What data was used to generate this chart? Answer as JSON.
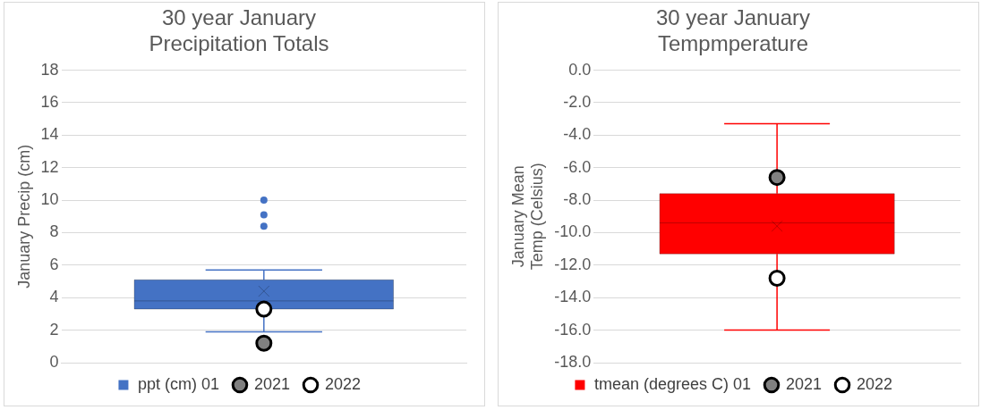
{
  "chart_data": [
    {
      "type": "box",
      "title": "30 year January Precipitation Totals",
      "ylabel": "January Precip (cm)",
      "categories": [
        null
      ],
      "ylim": [
        0,
        18
      ],
      "yticks": [
        0,
        2,
        4,
        6,
        8,
        10,
        12,
        14,
        16,
        18
      ],
      "grid": "y",
      "legend": "bottom",
      "tick_labels": "y",
      "series": [
        {
          "type": "box",
          "name": "ppt (cm) 01",
          "color": "#4472c4",
          "boxes": [
            {
              "low": 1.9,
              "q1": 3.3,
              "median": 3.8,
              "q3": 5.1,
              "high": 5.7,
              "mean": 4.4,
              "outliers": [
                8.4,
                9.1,
                10.0
              ]
            }
          ]
        },
        {
          "type": "scatter",
          "name": "2021",
          "color": "#808080",
          "marker": "circle",
          "values": [
            1.2
          ]
        },
        {
          "type": "scatter",
          "name": "2022",
          "color": "#ffffff",
          "marker": "circle",
          "values": [
            3.3
          ]
        }
      ]
    },
    {
      "type": "box",
      "title": "30 year January Tempmperature",
      "ylabel": "January Mean Temp (Celsius)",
      "categories": [
        null
      ],
      "ylim": [
        -18,
        0
      ],
      "yticks": [
        {
          "value": -18,
          "label": "-18.0"
        },
        {
          "value": -16,
          "label": "-16.0"
        },
        {
          "value": -14,
          "label": "-14.0"
        },
        {
          "value": -12,
          "label": "-12.0"
        },
        {
          "value": -10,
          "label": "-10.0"
        },
        {
          "value": -8,
          "label": "-8.0"
        },
        {
          "value": -6,
          "label": "-6.0"
        },
        {
          "value": -4,
          "label": "-4.0"
        },
        {
          "value": -2,
          "label": "-2.0"
        },
        {
          "value": 0,
          "label": "0.0"
        }
      ],
      "grid": "y",
      "legend": "bottom",
      "tick_labels": "y",
      "series": [
        {
          "type": "box",
          "name": "tmean (degrees C) 01",
          "color": "#ff0000",
          "boxes": [
            {
              "low": -16.0,
              "q1": -11.3,
              "median": -9.4,
              "q3": -7.6,
              "high": -3.3,
              "mean": -9.6
            }
          ]
        },
        {
          "type": "scatter",
          "name": "2021",
          "color": "#808080",
          "marker": "circle",
          "values": [
            -6.6
          ]
        },
        {
          "type": "scatter",
          "name": "2022",
          "color": "#ffffff",
          "marker": "circle",
          "values": [
            -12.8
          ]
        }
      ]
    }
  ]
}
